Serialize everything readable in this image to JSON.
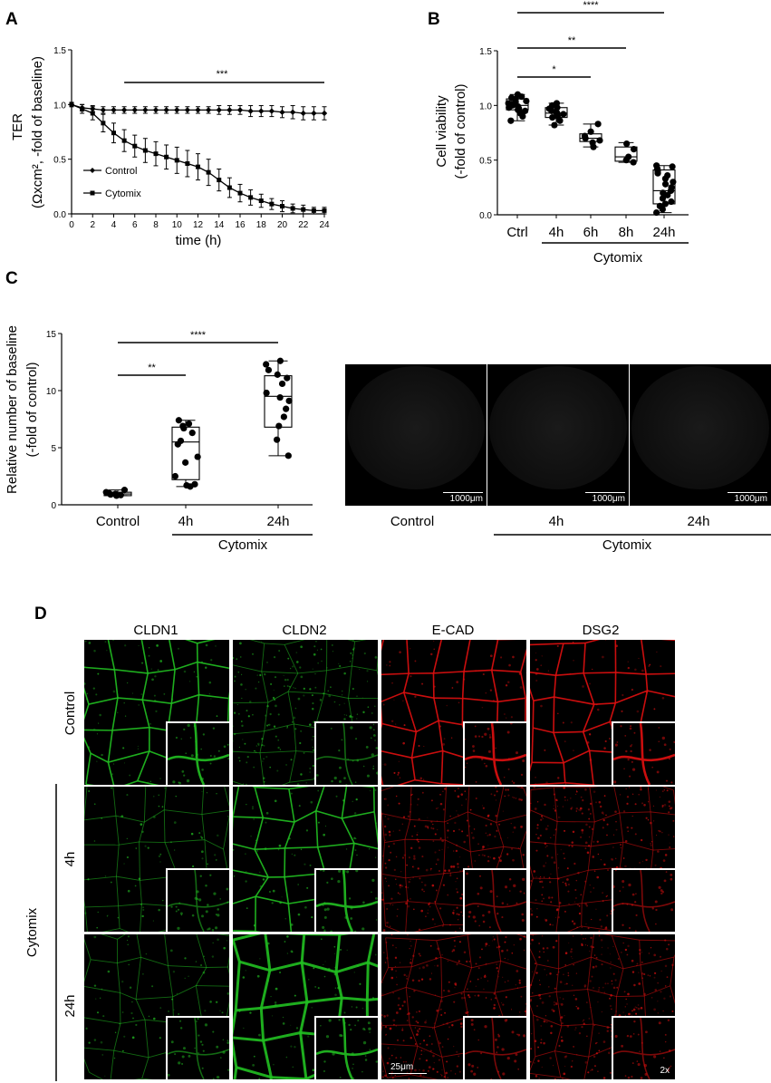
{
  "panels": {
    "A": "A",
    "B": "B",
    "C": "C",
    "D": "D"
  },
  "chart_data": [
    {
      "type": "line",
      "panel": "A",
      "xlabel": "time (h)",
      "ylabel_lines": [
        "TER",
        "(Ωxcm², -fold of baseline)"
      ],
      "xlim": [
        0,
        24
      ],
      "ylim": [
        0,
        1.5
      ],
      "xticks": [
        "0",
        "2",
        "4",
        "6",
        "8",
        "10",
        "12",
        "14",
        "16",
        "18",
        "20",
        "22",
        "24"
      ],
      "yticks": [
        "0.0",
        "0.5",
        "1.0",
        "1.5"
      ],
      "significance": "***",
      "legend_placement": "bottom-left",
      "x": [
        0,
        1,
        2,
        3,
        4,
        5,
        6,
        7,
        8,
        9,
        10,
        11,
        12,
        13,
        14,
        15,
        16,
        17,
        18,
        19,
        20,
        21,
        22,
        23,
        24
      ],
      "series": [
        {
          "name": "Control",
          "marker": "diamond",
          "values": [
            1.0,
            0.97,
            0.96,
            0.95,
            0.95,
            0.95,
            0.95,
            0.95,
            0.95,
            0.95,
            0.95,
            0.95,
            0.95,
            0.95,
            0.95,
            0.95,
            0.95,
            0.94,
            0.94,
            0.94,
            0.93,
            0.93,
            0.92,
            0.92,
            0.92
          ],
          "errors": [
            0.02,
            0.03,
            0.03,
            0.03,
            0.03,
            0.03,
            0.03,
            0.03,
            0.03,
            0.03,
            0.03,
            0.03,
            0.03,
            0.03,
            0.04,
            0.04,
            0.04,
            0.05,
            0.05,
            0.05,
            0.05,
            0.06,
            0.06,
            0.06,
            0.06
          ]
        },
        {
          "name": "Cytomix",
          "marker": "square",
          "values": [
            1.0,
            0.96,
            0.92,
            0.83,
            0.74,
            0.67,
            0.62,
            0.58,
            0.55,
            0.52,
            0.49,
            0.46,
            0.43,
            0.38,
            0.31,
            0.24,
            0.19,
            0.15,
            0.12,
            0.09,
            0.07,
            0.05,
            0.04,
            0.03,
            0.03
          ],
          "errors": [
            0.02,
            0.04,
            0.06,
            0.08,
            0.09,
            0.1,
            0.1,
            0.11,
            0.11,
            0.11,
            0.12,
            0.12,
            0.12,
            0.12,
            0.1,
            0.09,
            0.08,
            0.07,
            0.06,
            0.05,
            0.05,
            0.04,
            0.04,
            0.03,
            0.03
          ]
        }
      ]
    },
    {
      "type": "box",
      "panel": "B",
      "ylabel_lines": [
        "Cell viability",
        "(-fold of control)"
      ],
      "ylim": [
        0,
        1.5
      ],
      "yticks": [
        "0.0",
        "0.5",
        "1.0",
        "1.5"
      ],
      "categories": [
        "Ctrl",
        "4h",
        "6h",
        "8h",
        "24h"
      ],
      "group_label": "Cytomix",
      "boxes": [
        {
          "min": 0.86,
          "q1": 0.96,
          "median": 1.0,
          "q3": 1.06,
          "max": 1.1
        },
        {
          "min": 0.82,
          "q1": 0.89,
          "median": 0.93,
          "q3": 0.98,
          "max": 1.02
        },
        {
          "min": 0.62,
          "q1": 0.67,
          "median": 0.7,
          "q3": 0.74,
          "max": 0.83
        },
        {
          "min": 0.48,
          "q1": 0.49,
          "median": 0.53,
          "q3": 0.62,
          "max": 0.66
        },
        {
          "min": 0.02,
          "q1": 0.1,
          "median": 0.22,
          "q3": 0.41,
          "max": 0.45
        }
      ],
      "points": [
        [
          0.86,
          0.9,
          0.93,
          0.95,
          0.96,
          0.97,
          0.98,
          0.99,
          1.0,
          1.0,
          1.01,
          1.02,
          1.03,
          1.04,
          1.05,
          1.06,
          1.07,
          1.08,
          1.1
        ],
        [
          0.82,
          0.86,
          0.89,
          0.9,
          0.92,
          0.93,
          0.94,
          0.95,
          0.97,
          0.98,
          1.0,
          1.02
        ],
        [
          0.62,
          0.66,
          0.68,
          0.7,
          0.72,
          0.76,
          0.83
        ],
        [
          0.48,
          0.5,
          0.53,
          0.6,
          0.65
        ],
        [
          0.02,
          0.05,
          0.08,
          0.1,
          0.12,
          0.15,
          0.18,
          0.2,
          0.22,
          0.25,
          0.28,
          0.3,
          0.33,
          0.36,
          0.38,
          0.4,
          0.42,
          0.44,
          0.45
        ]
      ],
      "significance": [
        {
          "label": "*",
          "from": 0,
          "to": 2
        },
        {
          "label": "**",
          "from": 0,
          "to": 3
        },
        {
          "label": "****",
          "from": 0,
          "to": 4
        }
      ]
    },
    {
      "type": "box",
      "panel": "C",
      "ylabel_lines": [
        "Relative number of baseline",
        "(-fold of control)"
      ],
      "ylim": [
        0,
        15
      ],
      "yticks": [
        "0",
        "5",
        "10",
        "15"
      ],
      "categories": [
        "Control",
        "4h",
        "24h"
      ],
      "group_label": "Cytomix",
      "boxes": [
        {
          "min": 0.8,
          "q1": 0.8,
          "median": 0.95,
          "q3": 1.1,
          "max": 1.3
        },
        {
          "min": 1.6,
          "q1": 2.2,
          "median": 5.5,
          "q3": 6.8,
          "max": 7.4
        },
        {
          "min": 4.3,
          "q1": 6.8,
          "median": 9.5,
          "q3": 11.3,
          "max": 12.6
        }
      ],
      "points": [
        [
          0.8,
          0.85,
          0.9,
          0.95,
          1.0,
          1.1,
          1.3
        ],
        [
          1.6,
          1.7,
          1.8,
          2.5,
          3.7,
          4.2,
          5.3,
          5.6,
          6.3,
          6.7,
          6.9,
          7.1,
          7.4
        ],
        [
          4.3,
          5.7,
          6.9,
          7.7,
          8.4,
          9.1,
          9.4,
          9.8,
          10.6,
          11.1,
          11.4,
          11.8,
          12.3,
          12.6
        ]
      ],
      "significance": [
        {
          "label": "**",
          "from": 0,
          "to": 1
        },
        {
          "label": "****",
          "from": 0,
          "to": 2
        }
      ]
    }
  ],
  "micrographs_c": {
    "labels": [
      "Control",
      "4h",
      "24h"
    ],
    "group_label": "Cytomix",
    "scale": "1000μm"
  },
  "panel_d": {
    "columns": [
      "CLDN1",
      "CLDN2",
      "E-CAD",
      "DSG2"
    ],
    "rows": [
      "Control",
      "4h",
      "24h"
    ],
    "group_label": "Cytomix",
    "scale": "25μm",
    "inset_zoom": "2x",
    "colors": {
      "green": "#22c022",
      "red": "#e01010"
    }
  }
}
